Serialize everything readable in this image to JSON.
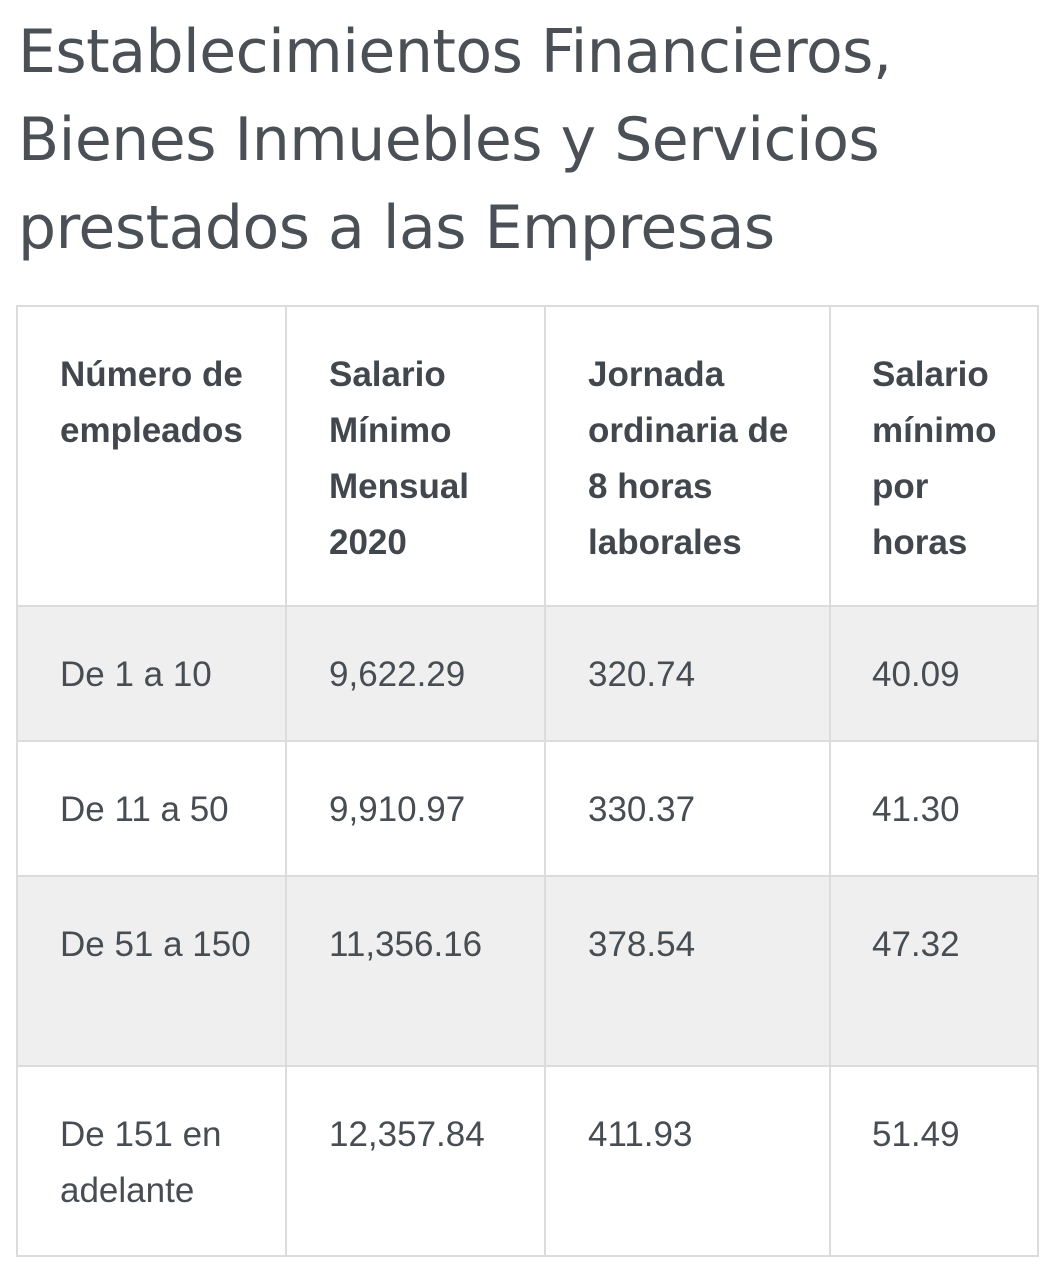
{
  "title": {
    "line1": "Establecimientos Financieros,",
    "line2": "Bienes Inmuebles y Servicios",
    "line3": "prestados a las Empresas"
  },
  "table": {
    "headers": [
      "Número de empleados",
      "Salario Mínimo Mensual 2020",
      "Jornada ordinaria de 8 horas laborales",
      "Salario mínimo por horas"
    ],
    "rows": [
      [
        "De 1 a 10",
        "9,622.29",
        "320.74",
        "40.09"
      ],
      [
        "De 11 a 50",
        "9,910.97",
        "330.37",
        "41.30"
      ],
      [
        "De 51 a 150",
        "11,356.16",
        "378.54",
        "47.32"
      ],
      [
        "De 151 en adelante",
        "12,357.84",
        "411.93",
        "51.49"
      ]
    ]
  }
}
